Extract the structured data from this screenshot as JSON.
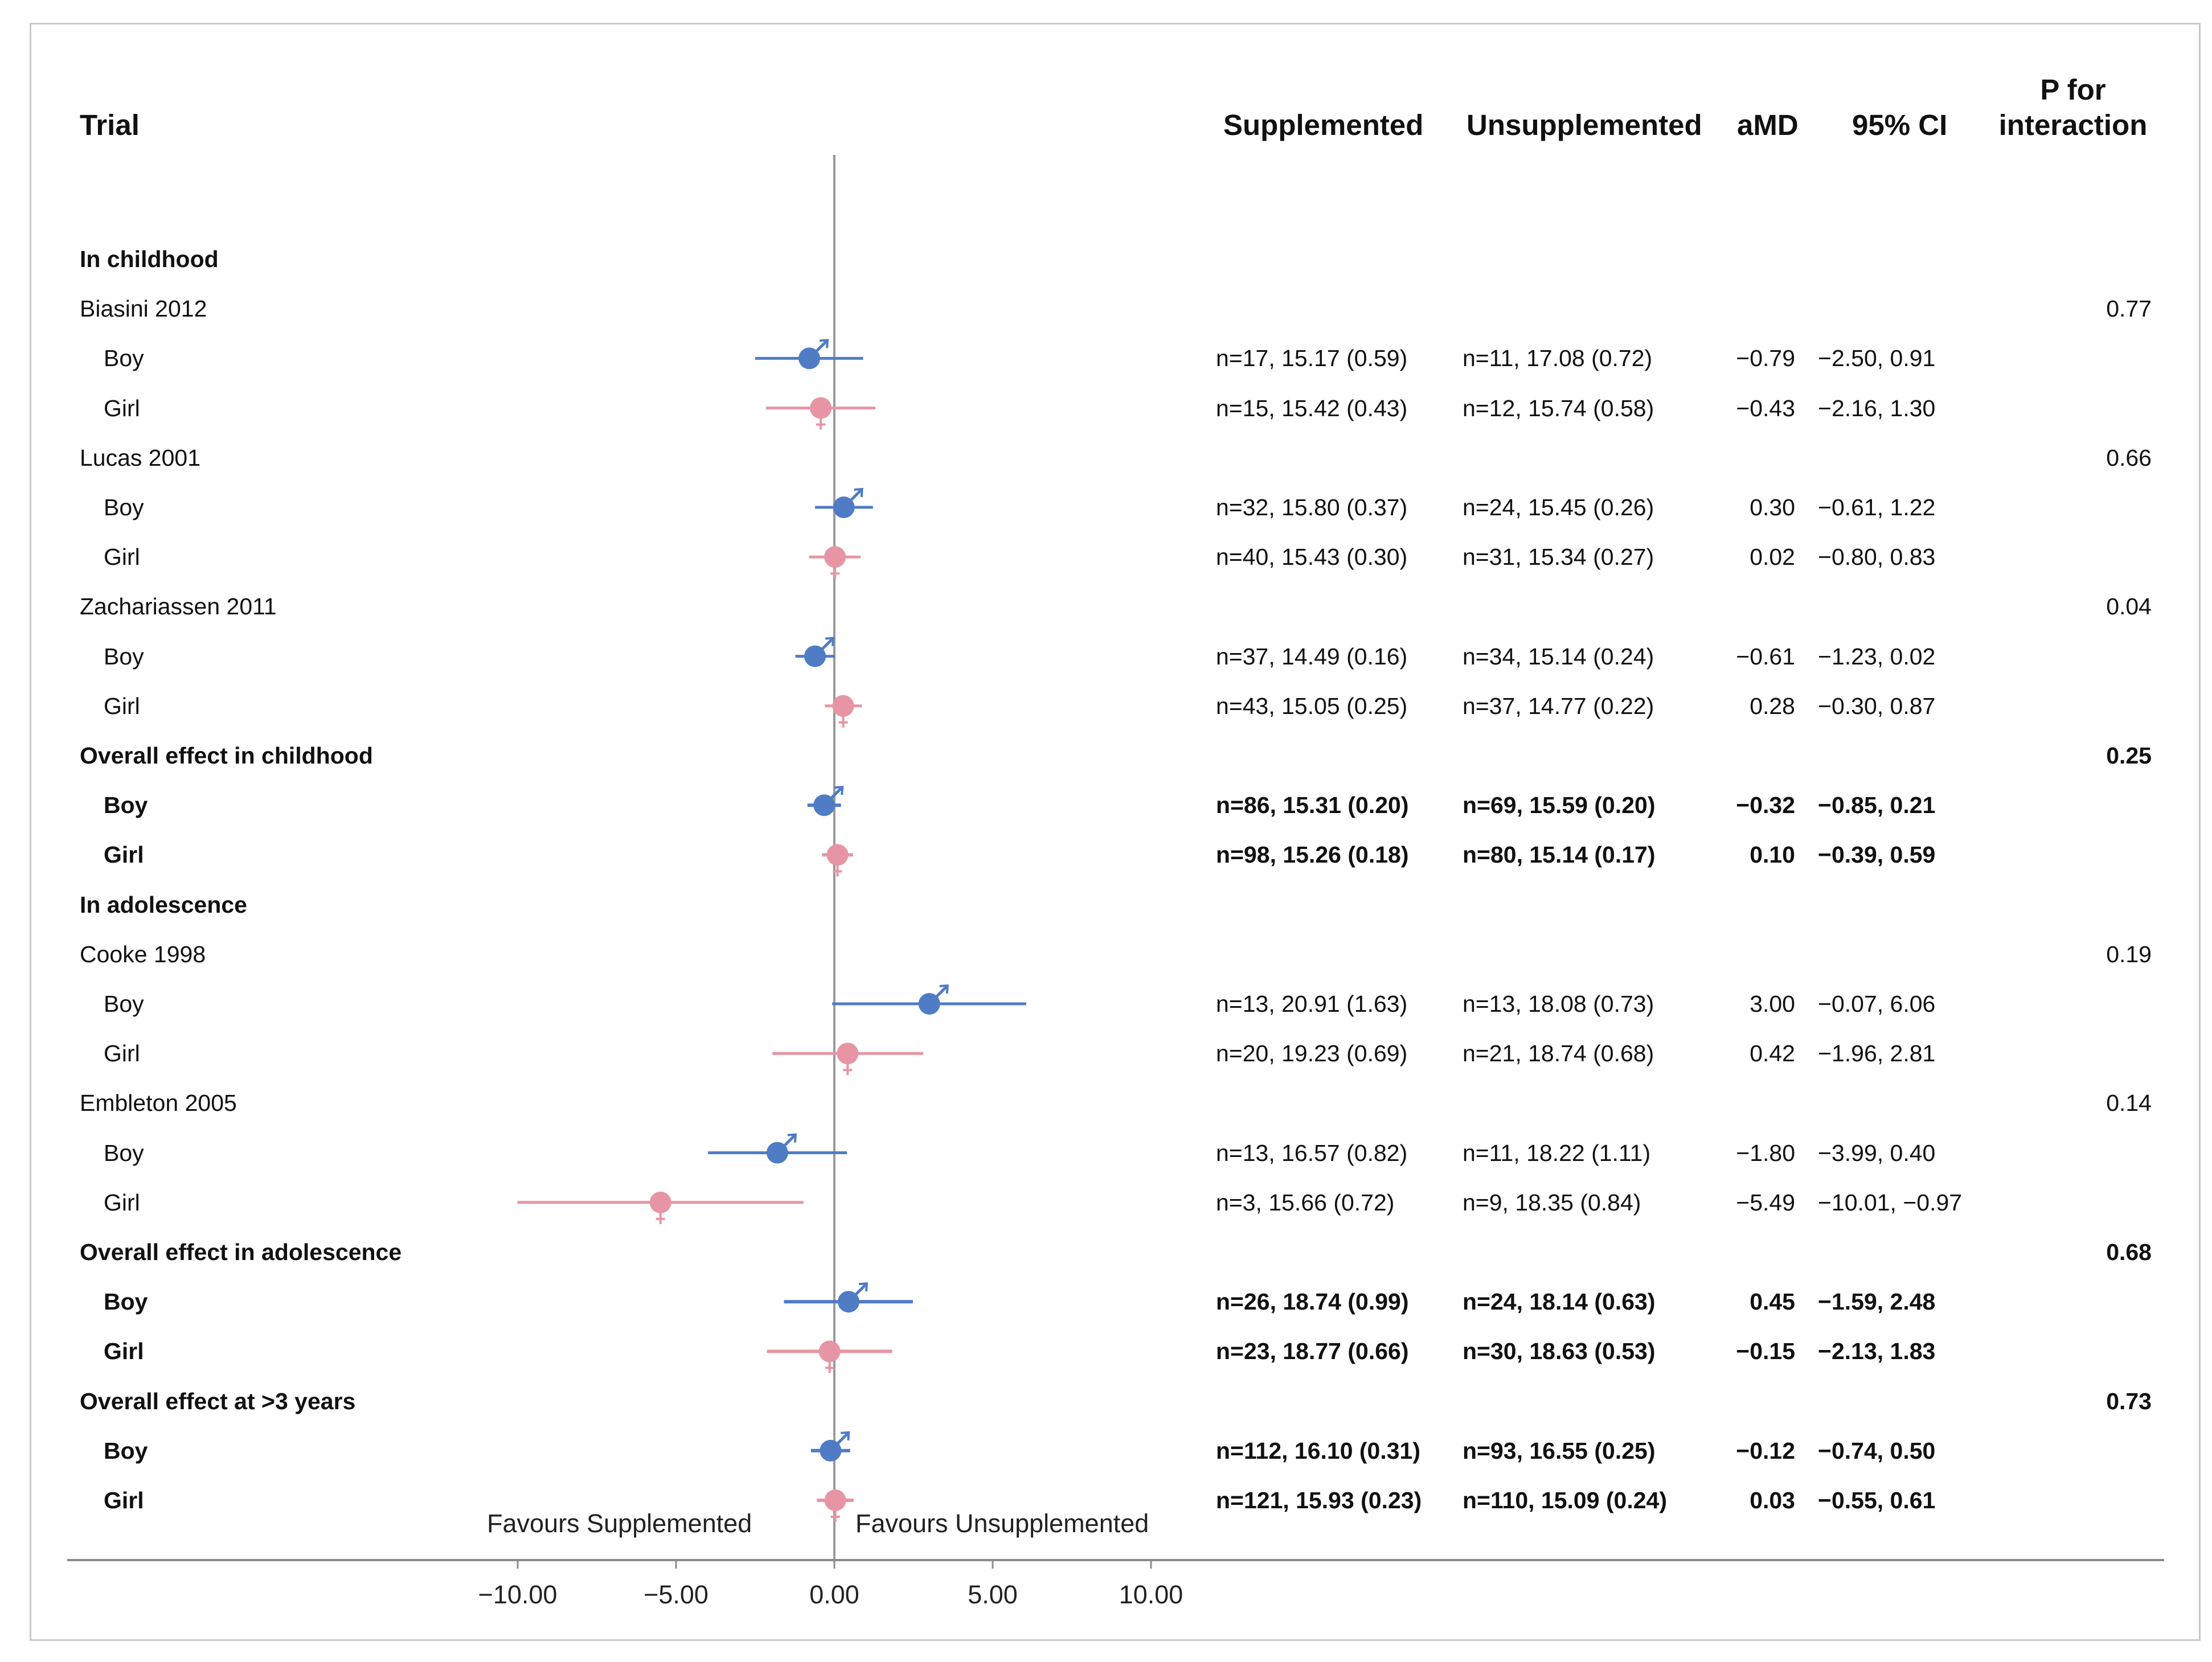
{
  "headers": {
    "trial": "Trial",
    "supplemented": "Supplemented",
    "unsupplemented": "Unsupplemented",
    "amd": "aMD",
    "ci": "95% CI",
    "p_line1": "P for",
    "p_line2": "interaction"
  },
  "favours": {
    "left": "Favours Supplemented",
    "right": "Favours Unsupplemented"
  },
  "colors": {
    "boy": "#4f7cc4",
    "girl": "#e795a4",
    "axis": "#9a9a9a",
    "frame": "#c8c8c8"
  },
  "rows": [
    {
      "label": "In childhood",
      "type": "section",
      "bold": true
    },
    {
      "label": "Biasini 2012",
      "type": "trial",
      "p": "0.77"
    },
    {
      "label": "Boy",
      "type": "boy",
      "sup": "n=17, 15.17 (0.59)",
      "unsup": "n=11, 17.08 (0.72)",
      "amd": "−0.79",
      "ci": "−2.50, 0.91"
    },
    {
      "label": "Girl",
      "type": "girl",
      "sup": "n=15, 15.42 (0.43)",
      "unsup": "n=12, 15.74 (0.58)",
      "amd": "−0.43",
      "ci": "−2.16, 1.30"
    },
    {
      "label": "Lucas 2001",
      "type": "trial",
      "p": "0.66"
    },
    {
      "label": "Boy",
      "type": "boy",
      "sup": "n=32, 15.80 (0.37)",
      "unsup": "n=24, 15.45 (0.26)",
      "amd": "0.30",
      "ci": "−0.61, 1.22"
    },
    {
      "label": "Girl",
      "type": "girl",
      "sup": "n=40, 15.43 (0.30)",
      "unsup": "n=31, 15.34 (0.27)",
      "amd": "0.02",
      "ci": "−0.80, 0.83"
    },
    {
      "label": "Zachariassen 2011",
      "type": "trial",
      "p": "0.04"
    },
    {
      "label": "Boy",
      "type": "boy",
      "sup": "n=37, 14.49 (0.16)",
      "unsup": "n=34, 15.14 (0.24)",
      "amd": "−0.61",
      "ci": "−1.23, 0.02"
    },
    {
      "label": "Girl",
      "type": "girl",
      "sup": "n=43, 15.05 (0.25)",
      "unsup": "n=37, 14.77 (0.22)",
      "amd": "0.28",
      "ci": "−0.30, 0.87"
    },
    {
      "label": "Overall effect in childhood",
      "type": "overall",
      "bold": true,
      "p": "0.25"
    },
    {
      "label": "Boy",
      "type": "boy",
      "bold": true,
      "sup": "n=86, 15.31 (0.20)",
      "unsup": "n=69, 15.59 (0.20)",
      "amd": "−0.32",
      "ci": "−0.85, 0.21"
    },
    {
      "label": "Girl",
      "type": "girl",
      "bold": true,
      "sup": "n=98, 15.26 (0.18)",
      "unsup": "n=80, 15.14 (0.17)",
      "amd": "0.10",
      "ci": "−0.39, 0.59"
    },
    {
      "label": "In adolescence",
      "type": "section",
      "bold": true
    },
    {
      "label": "Cooke 1998",
      "type": "trial",
      "p": "0.19"
    },
    {
      "label": "Boy",
      "type": "boy",
      "sup": "n=13, 20.91 (1.63)",
      "unsup": "n=13, 18.08 (0.73)",
      "amd": "3.00",
      "ci": "−0.07, 6.06"
    },
    {
      "label": "Girl",
      "type": "girl",
      "sup": "n=20, 19.23 (0.69)",
      "unsup": "n=21, 18.74 (0.68)",
      "amd": "0.42",
      "ci": "−1.96, 2.81"
    },
    {
      "label": "Embleton 2005",
      "type": "trial",
      "p": "0.14"
    },
    {
      "label": "Boy",
      "type": "boy",
      "sup": "n=13, 16.57 (0.82)",
      "unsup": "n=11, 18.22 (1.11)",
      "amd": "−1.80",
      "ci": "−3.99, 0.40"
    },
    {
      "label": "Girl",
      "type": "girl",
      "sup": "n=3, 15.66 (0.72)",
      "unsup": "n=9, 18.35 (0.84)",
      "amd": "−5.49",
      "ci": "−10.01, −0.97"
    },
    {
      "label": "Overall effect in adolescence",
      "type": "overall",
      "bold": true,
      "p": "0.68"
    },
    {
      "label": "Boy",
      "type": "boy",
      "bold": true,
      "sup": "n=26, 18.74 (0.99)",
      "unsup": "n=24, 18.14 (0.63)",
      "amd": "0.45",
      "ci": "−1.59, 2.48"
    },
    {
      "label": "Girl",
      "type": "girl",
      "bold": true,
      "sup": "n=23, 18.77 (0.66)",
      "unsup": "n=30, 18.63 (0.53)",
      "amd": "−0.15",
      "ci": "−2.13, 1.83"
    },
    {
      "label": "Overall effect at >3 years",
      "type": "overall",
      "bold": true,
      "p": "0.73"
    },
    {
      "label": "Boy",
      "type": "boy",
      "bold": true,
      "sup": "n=112, 16.10 (0.31)",
      "unsup": "n=93, 16.55 (0.25)",
      "amd": "−0.12",
      "ci": "−0.74, 0.50"
    },
    {
      "label": "Girl",
      "type": "girl",
      "bold": true,
      "sup": "n=121, 15.93 (0.23)",
      "unsup": "n=110, 15.09 (0.24)",
      "amd": "0.03",
      "ci": "−0.55, 0.61"
    }
  ],
  "chart_data": {
    "type": "forest",
    "xlim": [
      -10,
      10
    ],
    "xticks": [
      -10,
      -5,
      0,
      5,
      10
    ],
    "xtick_labels": [
      "−10.00",
      "−5.00",
      "0.00",
      "5.00",
      "10.00"
    ],
    "reference_line": 0,
    "grid": false,
    "estimates": [
      {
        "group": "Biasini 2012",
        "sex": "Boy",
        "amd": -0.79,
        "lo": -2.5,
        "hi": 0.91
      },
      {
        "group": "Biasini 2012",
        "sex": "Girl",
        "amd": -0.43,
        "lo": -2.16,
        "hi": 1.3
      },
      {
        "group": "Lucas 2001",
        "sex": "Boy",
        "amd": 0.3,
        "lo": -0.61,
        "hi": 1.22
      },
      {
        "group": "Lucas 2001",
        "sex": "Girl",
        "amd": 0.02,
        "lo": -0.8,
        "hi": 0.83
      },
      {
        "group": "Zachariassen 2011",
        "sex": "Boy",
        "amd": -0.61,
        "lo": -1.23,
        "hi": 0.02
      },
      {
        "group": "Zachariassen 2011",
        "sex": "Girl",
        "amd": 0.28,
        "lo": -0.3,
        "hi": 0.87
      },
      {
        "group": "Overall effect in childhood",
        "sex": "Boy",
        "amd": -0.32,
        "lo": -0.85,
        "hi": 0.21
      },
      {
        "group": "Overall effect in childhood",
        "sex": "Girl",
        "amd": 0.1,
        "lo": -0.39,
        "hi": 0.59
      },
      {
        "group": "Cooke 1998",
        "sex": "Boy",
        "amd": 3.0,
        "lo": -0.07,
        "hi": 6.06
      },
      {
        "group": "Cooke 1998",
        "sex": "Girl",
        "amd": 0.42,
        "lo": -1.96,
        "hi": 2.81
      },
      {
        "group": "Embleton 2005",
        "sex": "Boy",
        "amd": -1.8,
        "lo": -3.99,
        "hi": 0.4
      },
      {
        "group": "Embleton 2005",
        "sex": "Girl",
        "amd": -5.49,
        "lo": -10.01,
        "hi": -0.97
      },
      {
        "group": "Overall effect in adolescence",
        "sex": "Boy",
        "amd": 0.45,
        "lo": -1.59,
        "hi": 2.48
      },
      {
        "group": "Overall effect in adolescence",
        "sex": "Girl",
        "amd": -0.15,
        "lo": -2.13,
        "hi": 1.83
      },
      {
        "group": "Overall effect at >3 years",
        "sex": "Boy",
        "amd": -0.12,
        "lo": -0.74,
        "hi": 0.5
      },
      {
        "group": "Overall effect at >3 years",
        "sex": "Girl",
        "amd": 0.03,
        "lo": -0.55,
        "hi": 0.61
      }
    ]
  }
}
